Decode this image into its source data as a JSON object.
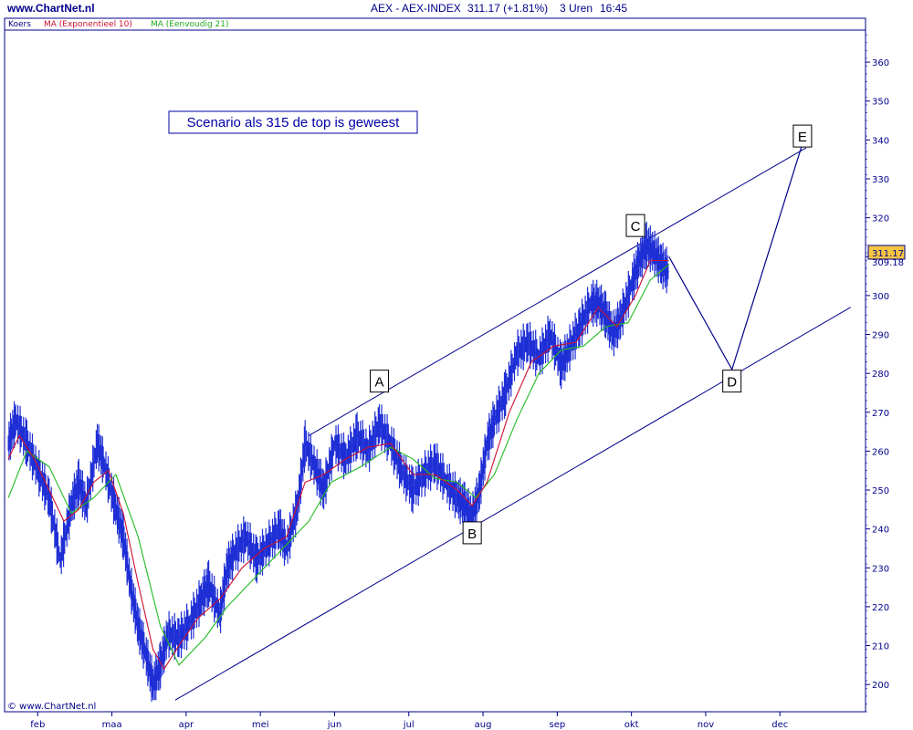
{
  "header": {
    "site": "www.ChartNet.nl",
    "title": "AEX - AEX-INDEX",
    "quote": "311.17 (+1.81%)",
    "period": "3 Uren",
    "time": "16:45"
  },
  "legend": {
    "price": "Koers",
    "ema": "MA (Exponentieel 10)",
    "sma": "MA (Eenvoudig 21)"
  },
  "copyright": "© www.ChartNet.nl",
  "annotation": "Scenario als 315 de top is geweest",
  "colors": {
    "price": "#1f2fd6",
    "ema": "#cc1030",
    "sma": "#22bb22",
    "frame": "#00008b",
    "price_badge": "#f5c542"
  },
  "chart_data": {
    "type": "line",
    "title": "AEX - AEX-INDEX",
    "ylim": [
      193,
      368
    ],
    "y_ticks": [
      200,
      210,
      220,
      230,
      240,
      250,
      260,
      270,
      280,
      290,
      300,
      310,
      320,
      330,
      340,
      350,
      360
    ],
    "y_tick_labels": [
      "200",
      "210",
      "220",
      "230",
      "240",
      "250",
      "260",
      "270",
      "280",
      "290",
      "300",
      "",
      "320",
      "330",
      "340",
      "350",
      "360"
    ],
    "x_labels": [
      "feb",
      "maa",
      "apr",
      "mei",
      "jun",
      "jul",
      "aug",
      "sep",
      "okt",
      "nov",
      "dec"
    ],
    "x_label_pos": [
      1.0,
      2.0,
      3.0,
      4.0,
      5.0,
      6.0,
      7.0,
      8.0,
      9.0,
      10.0,
      11.0
    ],
    "xlim": [
      0.0,
      11.6
    ],
    "last_price_label": "311.17",
    "secondary_price_label": "309.18",
    "price_path": [
      [
        0.05,
        262
      ],
      [
        0.15,
        268
      ],
      [
        0.3,
        262
      ],
      [
        0.45,
        255
      ],
      [
        0.6,
        248
      ],
      [
        0.75,
        232
      ],
      [
        0.9,
        246
      ],
      [
        1.0,
        252
      ],
      [
        1.1,
        246
      ],
      [
        1.25,
        262
      ],
      [
        1.35,
        256
      ],
      [
        1.5,
        245
      ],
      [
        1.6,
        238
      ],
      [
        1.7,
        225
      ],
      [
        1.8,
        215
      ],
      [
        1.9,
        208
      ],
      [
        2.0,
        200
      ],
      [
        2.1,
        205
      ],
      [
        2.2,
        213
      ],
      [
        2.35,
        212
      ],
      [
        2.5,
        216
      ],
      [
        2.65,
        222
      ],
      [
        2.75,
        226
      ],
      [
        2.9,
        218
      ],
      [
        3.0,
        230
      ],
      [
        3.1,
        234
      ],
      [
        3.25,
        238
      ],
      [
        3.4,
        232
      ],
      [
        3.55,
        236
      ],
      [
        3.7,
        240
      ],
      [
        3.8,
        235
      ],
      [
        3.95,
        246
      ],
      [
        4.05,
        262
      ],
      [
        4.2,
        255
      ],
      [
        4.3,
        250
      ],
      [
        4.45,
        262
      ],
      [
        4.6,
        258
      ],
      [
        4.75,
        264
      ],
      [
        4.9,
        260
      ],
      [
        5.05,
        267
      ],
      [
        5.2,
        262
      ],
      [
        5.35,
        255
      ],
      [
        5.5,
        250
      ],
      [
        5.65,
        254
      ],
      [
        5.8,
        257
      ],
      [
        5.95,
        252
      ],
      [
        6.1,
        248
      ],
      [
        6.2,
        246
      ],
      [
        6.3,
        243
      ],
      [
        6.4,
        250
      ],
      [
        6.5,
        262
      ],
      [
        6.6,
        268
      ],
      [
        6.75,
        275
      ],
      [
        6.9,
        285
      ],
      [
        7.05,
        288
      ],
      [
        7.2,
        284
      ],
      [
        7.35,
        290
      ],
      [
        7.5,
        282
      ],
      [
        7.6,
        286
      ],
      [
        7.75,
        292
      ],
      [
        7.9,
        298
      ],
      [
        8.0,
        298
      ],
      [
        8.1,
        295
      ],
      [
        8.2,
        290
      ],
      [
        8.3,
        294
      ],
      [
        8.45,
        303
      ],
      [
        8.55,
        309
      ],
      [
        8.65,
        313
      ],
      [
        8.75,
        311
      ],
      [
        8.85,
        308
      ],
      [
        8.95,
        306
      ]
    ],
    "ema_path": [
      [
        0.05,
        258
      ],
      [
        0.2,
        264
      ],
      [
        0.4,
        258
      ],
      [
        0.6,
        250
      ],
      [
        0.8,
        242
      ],
      [
        1.0,
        245
      ],
      [
        1.2,
        252
      ],
      [
        1.4,
        255
      ],
      [
        1.6,
        244
      ],
      [
        1.8,
        226
      ],
      [
        2.0,
        209
      ],
      [
        2.15,
        204
      ],
      [
        2.35,
        210
      ],
      [
        2.6,
        217
      ],
      [
        2.9,
        222
      ],
      [
        3.2,
        230
      ],
      [
        3.5,
        235
      ],
      [
        3.8,
        238
      ],
      [
        4.05,
        252
      ],
      [
        4.3,
        254
      ],
      [
        4.6,
        258
      ],
      [
        4.9,
        261
      ],
      [
        5.2,
        262
      ],
      [
        5.5,
        254
      ],
      [
        5.8,
        254
      ],
      [
        6.1,
        250
      ],
      [
        6.3,
        246
      ],
      [
        6.5,
        252
      ],
      [
        6.8,
        270
      ],
      [
        7.1,
        283
      ],
      [
        7.4,
        287
      ],
      [
        7.7,
        288
      ],
      [
        8.0,
        297
      ],
      [
        8.25,
        292
      ],
      [
        8.5,
        300
      ],
      [
        8.7,
        309
      ],
      [
        8.95,
        309
      ]
    ],
    "sma_path": [
      [
        0.05,
        248
      ],
      [
        0.3,
        260
      ],
      [
        0.6,
        256
      ],
      [
        0.9,
        244
      ],
      [
        1.2,
        248
      ],
      [
        1.5,
        254
      ],
      [
        1.8,
        238
      ],
      [
        2.1,
        215
      ],
      [
        2.35,
        205
      ],
      [
        2.7,
        212
      ],
      [
        3.0,
        220
      ],
      [
        3.4,
        228
      ],
      [
        3.8,
        236
      ],
      [
        4.1,
        242
      ],
      [
        4.4,
        252
      ],
      [
        4.8,
        256
      ],
      [
        5.2,
        261
      ],
      [
        5.5,
        258
      ],
      [
        5.8,
        253
      ],
      [
        6.1,
        252
      ],
      [
        6.35,
        248
      ],
      [
        6.6,
        254
      ],
      [
        6.9,
        268
      ],
      [
        7.2,
        280
      ],
      [
        7.5,
        286
      ],
      [
        7.8,
        287
      ],
      [
        8.1,
        292
      ],
      [
        8.4,
        293
      ],
      [
        8.7,
        304
      ],
      [
        8.95,
        308
      ]
    ],
    "channel_lines": [
      {
        "from": [
          2.3,
          196
        ],
        "to": [
          11.4,
          297
        ]
      },
      {
        "from": [
          4.1,
          264
        ],
        "to": [
          10.8,
          338
        ]
      }
    ],
    "projection_path": [
      [
        8.95,
        310
      ],
      [
        9.8,
        281
      ],
      [
        10.75,
        339
      ]
    ],
    "wave_labels": [
      {
        "label": "A",
        "x": 5.05,
        "y": 278
      },
      {
        "label": "B",
        "x": 6.3,
        "y": 239
      },
      {
        "label": "C",
        "x": 8.5,
        "y": 318
      },
      {
        "label": "D",
        "x": 9.8,
        "y": 278
      },
      {
        "label": "E",
        "x": 10.75,
        "y": 341
      }
    ]
  }
}
